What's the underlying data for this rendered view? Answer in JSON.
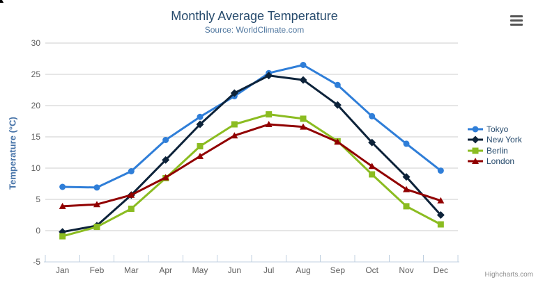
{
  "chart_data": {
    "type": "line",
    "title": "Monthly Average Temperature",
    "subtitle": "Source: WorldClimate.com",
    "xlabel": "",
    "ylabel": "Temperature (°C)",
    "categories": [
      "Jan",
      "Feb",
      "Mar",
      "Apr",
      "May",
      "Jun",
      "Jul",
      "Aug",
      "Sep",
      "Oct",
      "Nov",
      "Dec"
    ],
    "ylim": [
      -5,
      30
    ],
    "ytick_step": 5,
    "yticks": [
      -5,
      0,
      5,
      10,
      15,
      20,
      25,
      30
    ],
    "grid": true,
    "legend_position": "right",
    "series": [
      {
        "name": "Tokyo",
        "color": "#2f7ed8",
        "marker": "circle",
        "values": [
          7.0,
          6.9,
          9.5,
          14.5,
          18.2,
          21.5,
          25.2,
          26.5,
          23.3,
          18.3,
          13.9,
          9.6
        ]
      },
      {
        "name": "New York",
        "color": "#0d233a",
        "marker": "diamond",
        "values": [
          -0.2,
          0.8,
          5.7,
          11.3,
          17.0,
          22.0,
          24.8,
          24.1,
          20.1,
          14.1,
          8.6,
          2.5
        ]
      },
      {
        "name": "Berlin",
        "color": "#8bbc21",
        "marker": "square",
        "values": [
          -0.9,
          0.6,
          3.5,
          8.4,
          13.5,
          17.0,
          18.6,
          17.9,
          14.3,
          9.0,
          3.9,
          1.0
        ]
      },
      {
        "name": "London",
        "color": "#910000",
        "marker": "triangle",
        "values": [
          3.9,
          4.2,
          5.7,
          8.5,
          11.9,
          15.2,
          17.0,
          16.6,
          14.2,
          10.3,
          6.6,
          4.8
        ]
      }
    ]
  },
  "credits": {
    "label": "Highcharts.com"
  },
  "menu": {
    "icon": "hamburger"
  },
  "theme": {
    "background": "#ffffff",
    "title_color": "#274b6d",
    "subtitle_color": "#4d759e",
    "yaxis_title_color": "#4572a7",
    "axis_label_color": "#606060",
    "legend_text_color": "#274b6d",
    "grid_color": "#cccccc",
    "axis_line_color": "#c0d0e0",
    "credits_color": "#909090",
    "menu_icon_color": "#545454"
  }
}
